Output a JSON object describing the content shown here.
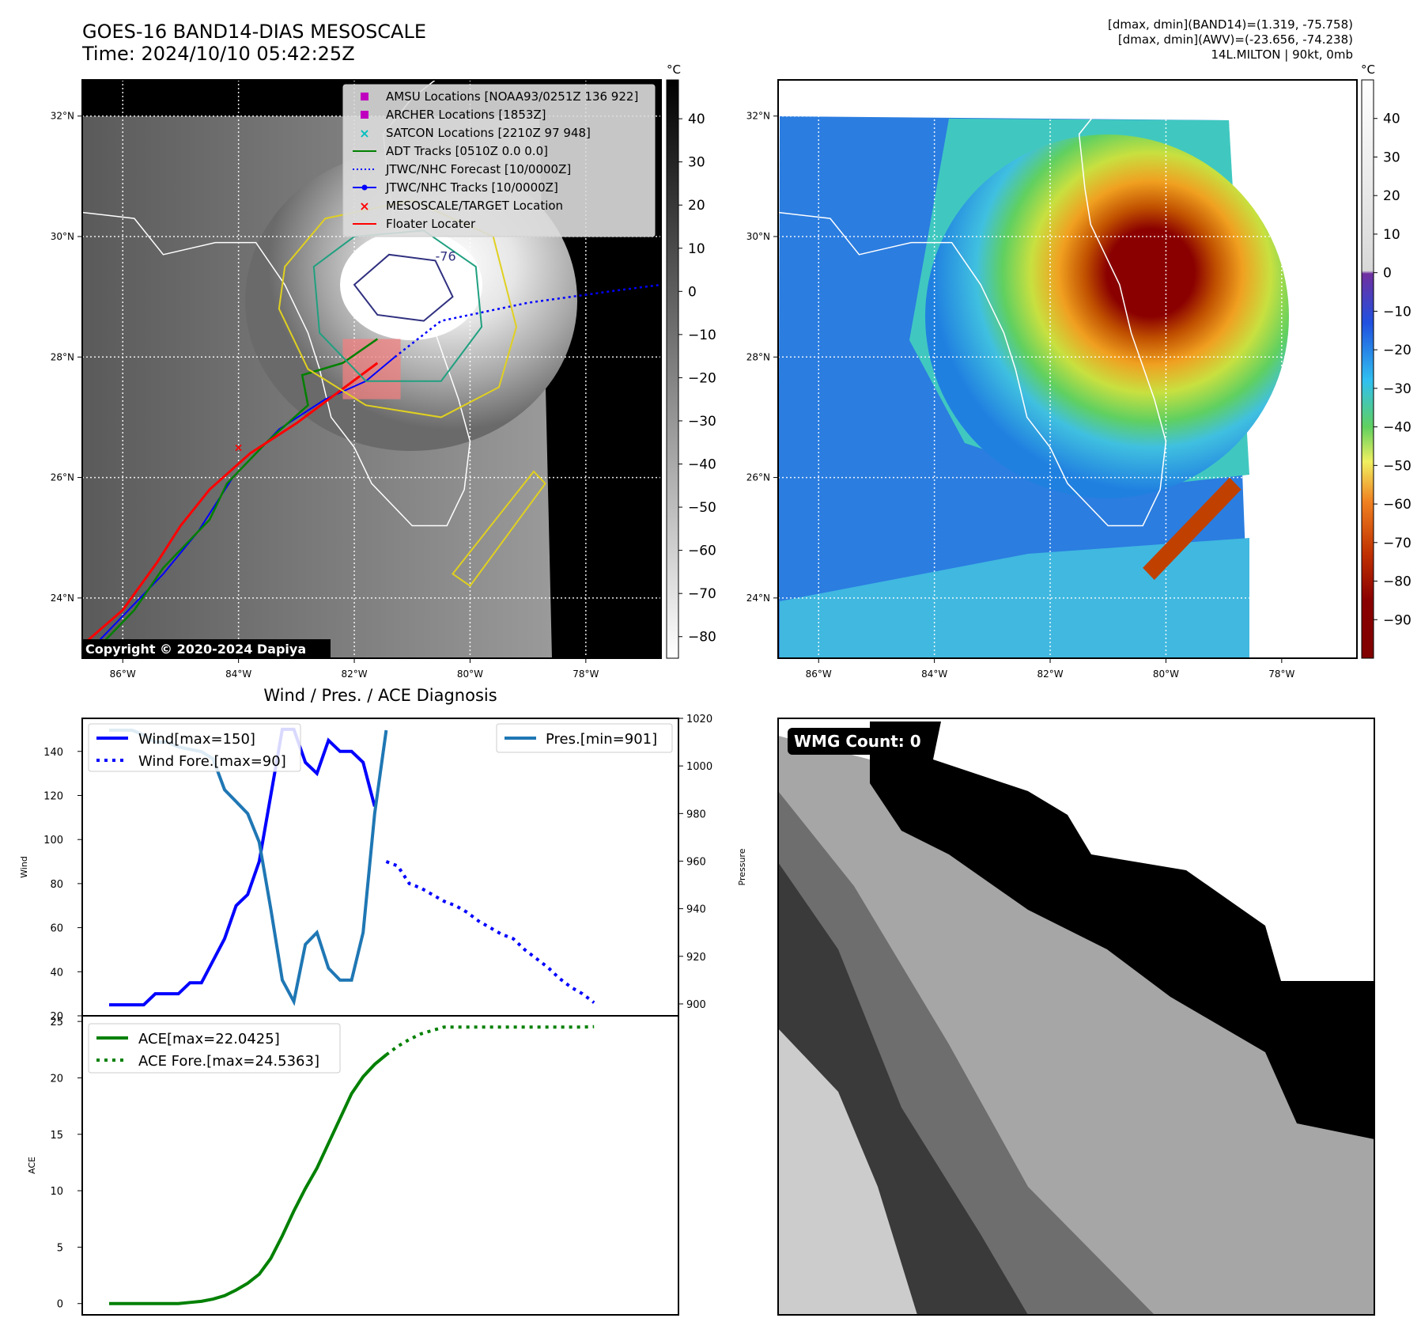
{
  "header": {
    "title_line1": "GOES-16 BAND14-DIAS MESOSCALE",
    "title_line2": "Time: 2024/10/10 05:42:25Z",
    "info_line1": "[dmax, dmin](BAND14)=(1.319, -75.758)",
    "info_line2": "[dmax, dmin](AWV)=(-23.656, -74.238)",
    "info_line3": "14L.MILTON | 90kt, 0mb"
  },
  "map": {
    "lat_labels": [
      "32°N",
      "30°N",
      "28°N",
      "26°N",
      "24°N"
    ],
    "lat_values": [
      32,
      30,
      28,
      26,
      24
    ],
    "lon_labels": [
      "86°W",
      "84°W",
      "82°W",
      "80°W",
      "78°W"
    ],
    "lon_values": [
      -86,
      -84,
      -82,
      -80,
      -78
    ],
    "extent": {
      "lon_min": -86.7,
      "lon_max": -76.7,
      "lat_min": 23.0,
      "lat_max": 32.6
    },
    "copyright": "Copyright © 2020-2024 Dapiya",
    "contour_label": "-76",
    "colors": {
      "adt": "#008000",
      "jtwc": "#0000ff",
      "floater": "#ff0000",
      "amsu": "#bf00bf",
      "satcon": "#00bfbf",
      "floater_box": "#f08080"
    }
  },
  "legend": [
    {
      "label": "AMSU Locations [NOAA93/0251Z 136 922]",
      "marker": "square",
      "color": "#bf00bf"
    },
    {
      "label": "ARCHER Locations [1853Z]",
      "marker": "square",
      "color": "#bf00bf"
    },
    {
      "label": "SATCON Locations [2210Z 97 948]",
      "marker": "x",
      "color": "#00bfbf"
    },
    {
      "label": "ADT Tracks [0510Z 0.0 0.0]",
      "marker": "line",
      "color": "#008000"
    },
    {
      "label": "JTWC/NHC Forecast [10/0000Z]",
      "marker": "dotted",
      "color": "#0000ff"
    },
    {
      "label": "JTWC/NHC Tracks [10/0000Z]",
      "marker": "line-dot",
      "color": "#0000ff"
    },
    {
      "label": "MESOSCALE/TARGET Location",
      "marker": "x",
      "color": "#ff0000"
    },
    {
      "label": "Floater Locater",
      "marker": "line",
      "color": "#ff0000"
    }
  ],
  "colorbar_gray": {
    "unit": "°C",
    "ticks": [
      "40",
      "30",
      "20",
      "10",
      "0",
      "−10",
      "−20",
      "−30",
      "−40",
      "−50",
      "−60",
      "−70",
      "−80"
    ],
    "values": [
      40,
      30,
      20,
      10,
      0,
      -10,
      -20,
      -30,
      -40,
      -50,
      -60,
      -70,
      -80
    ],
    "range": [
      -85,
      49
    ]
  },
  "colorbar_color": {
    "unit": "°C",
    "ticks": [
      "40",
      "30",
      "20",
      "10",
      "0",
      "−10",
      "−20",
      "−30",
      "−40",
      "−50",
      "−60",
      "−70",
      "−80",
      "−90"
    ],
    "values": [
      40,
      30,
      20,
      10,
      0,
      -10,
      -20,
      -30,
      -40,
      -50,
      -60,
      -70,
      -80,
      -90
    ],
    "range": [
      -100,
      50
    ]
  },
  "diagnosis": {
    "title": "Wind / Pres. / ACE Diagnosis",
    "wind_ylabel": "Wind",
    "pres_ylabel": "Pressure",
    "ace_ylabel": "ACE",
    "wind_yticks": [
      "140",
      "120",
      "100",
      "80",
      "60",
      "40",
      "20"
    ],
    "pres_yticks": [
      "1020",
      "1000",
      "980",
      "960",
      "940",
      "920",
      "900"
    ],
    "ace_yticks": [
      "25",
      "20",
      "15",
      "10",
      "5",
      "0"
    ],
    "legend_wind": "Wind[max=150]",
    "legend_wind_fore": "Wind Fore.[max=90]",
    "legend_pres": "Pres.[min=901]",
    "legend_ace": "ACE[max=22.0425]",
    "legend_ace_fore": "ACE Fore.[max=24.5363]"
  },
  "wmg": {
    "label": "WMG Count: 0"
  },
  "chart_data": [
    {
      "type": "line",
      "title": "Wind / Pres. / ACE Diagnosis",
      "ylabel": "Wind",
      "ylim": [
        20,
        155
      ],
      "series": [
        {
          "name": "Wind[max=150]",
          "style": "solid",
          "color": "#0000ff",
          "x": [
            0,
            1,
            2,
            3,
            4,
            5,
            6,
            7,
            8,
            9,
            10,
            11,
            12,
            13,
            14,
            15,
            16,
            17,
            18,
            19,
            20,
            21,
            22,
            23
          ],
          "values": [
            25,
            25,
            25,
            25,
            30,
            30,
            30,
            35,
            35,
            45,
            55,
            70,
            75,
            90,
            120,
            150,
            150,
            135,
            130,
            145,
            140,
            140,
            135,
            115
          ]
        },
        {
          "name": "Wind Fore.[max=90]",
          "style": "dotted",
          "color": "#0000ff",
          "x": [
            24,
            25,
            26,
            27,
            28,
            29,
            30,
            31,
            32,
            33,
            34,
            35,
            36,
            37,
            38,
            39,
            40,
            41,
            42
          ],
          "values": [
            90,
            88,
            80,
            78,
            75,
            72,
            70,
            67,
            63,
            60,
            57,
            55,
            50,
            46,
            42,
            37,
            33,
            30,
            26
          ]
        }
      ]
    },
    {
      "type": "line",
      "ylabel": "Pressure",
      "ylim": [
        895,
        1020
      ],
      "series": [
        {
          "name": "Pres.[min=901]",
          "style": "solid",
          "color": "#1f77b4",
          "x": [
            0,
            1,
            2,
            3,
            4,
            5,
            6,
            7,
            8,
            9,
            10,
            11,
            12,
            13,
            14,
            15,
            16,
            17,
            18,
            19,
            20,
            21,
            22,
            23,
            24
          ],
          "values": [
            1015,
            1015,
            1015,
            1013,
            1010,
            1010,
            1008,
            1007,
            1006,
            1003,
            990,
            985,
            980,
            968,
            940,
            910,
            901,
            925,
            930,
            915,
            910,
            910,
            930,
            980,
            1015
          ]
        }
      ]
    },
    {
      "type": "line",
      "ylabel": "ACE",
      "ylim": [
        -1,
        25.5
      ],
      "series": [
        {
          "name": "ACE[max=22.0425]",
          "style": "solid",
          "color": "#008000",
          "x": [
            0,
            1,
            2,
            3,
            4,
            5,
            6,
            7,
            8,
            9,
            10,
            11,
            12,
            13,
            14,
            15,
            16,
            17,
            18,
            19,
            20,
            21,
            22,
            23,
            24
          ],
          "values": [
            0,
            0,
            0,
            0,
            0,
            0,
            0,
            0.1,
            0.2,
            0.4,
            0.7,
            1.2,
            1.8,
            2.6,
            4,
            6,
            8.2,
            10.2,
            12,
            14.2,
            16.4,
            18.6,
            20.1,
            21.2,
            22.0425
          ]
        },
        {
          "name": "ACE Fore.[max=24.5363]",
          "style": "dotted",
          "color": "#008000",
          "x": [
            24,
            25,
            26,
            27,
            28,
            29,
            30,
            31,
            32,
            33,
            34,
            35,
            36,
            37,
            38,
            39,
            40,
            41,
            42
          ],
          "values": [
            22.0425,
            22.8,
            23.4,
            23.9,
            24.2,
            24.5,
            24.5,
            24.5,
            24.5,
            24.5,
            24.5,
            24.5,
            24.5,
            24.5,
            24.5,
            24.5,
            24.5,
            24.5,
            24.5363
          ]
        }
      ]
    }
  ]
}
